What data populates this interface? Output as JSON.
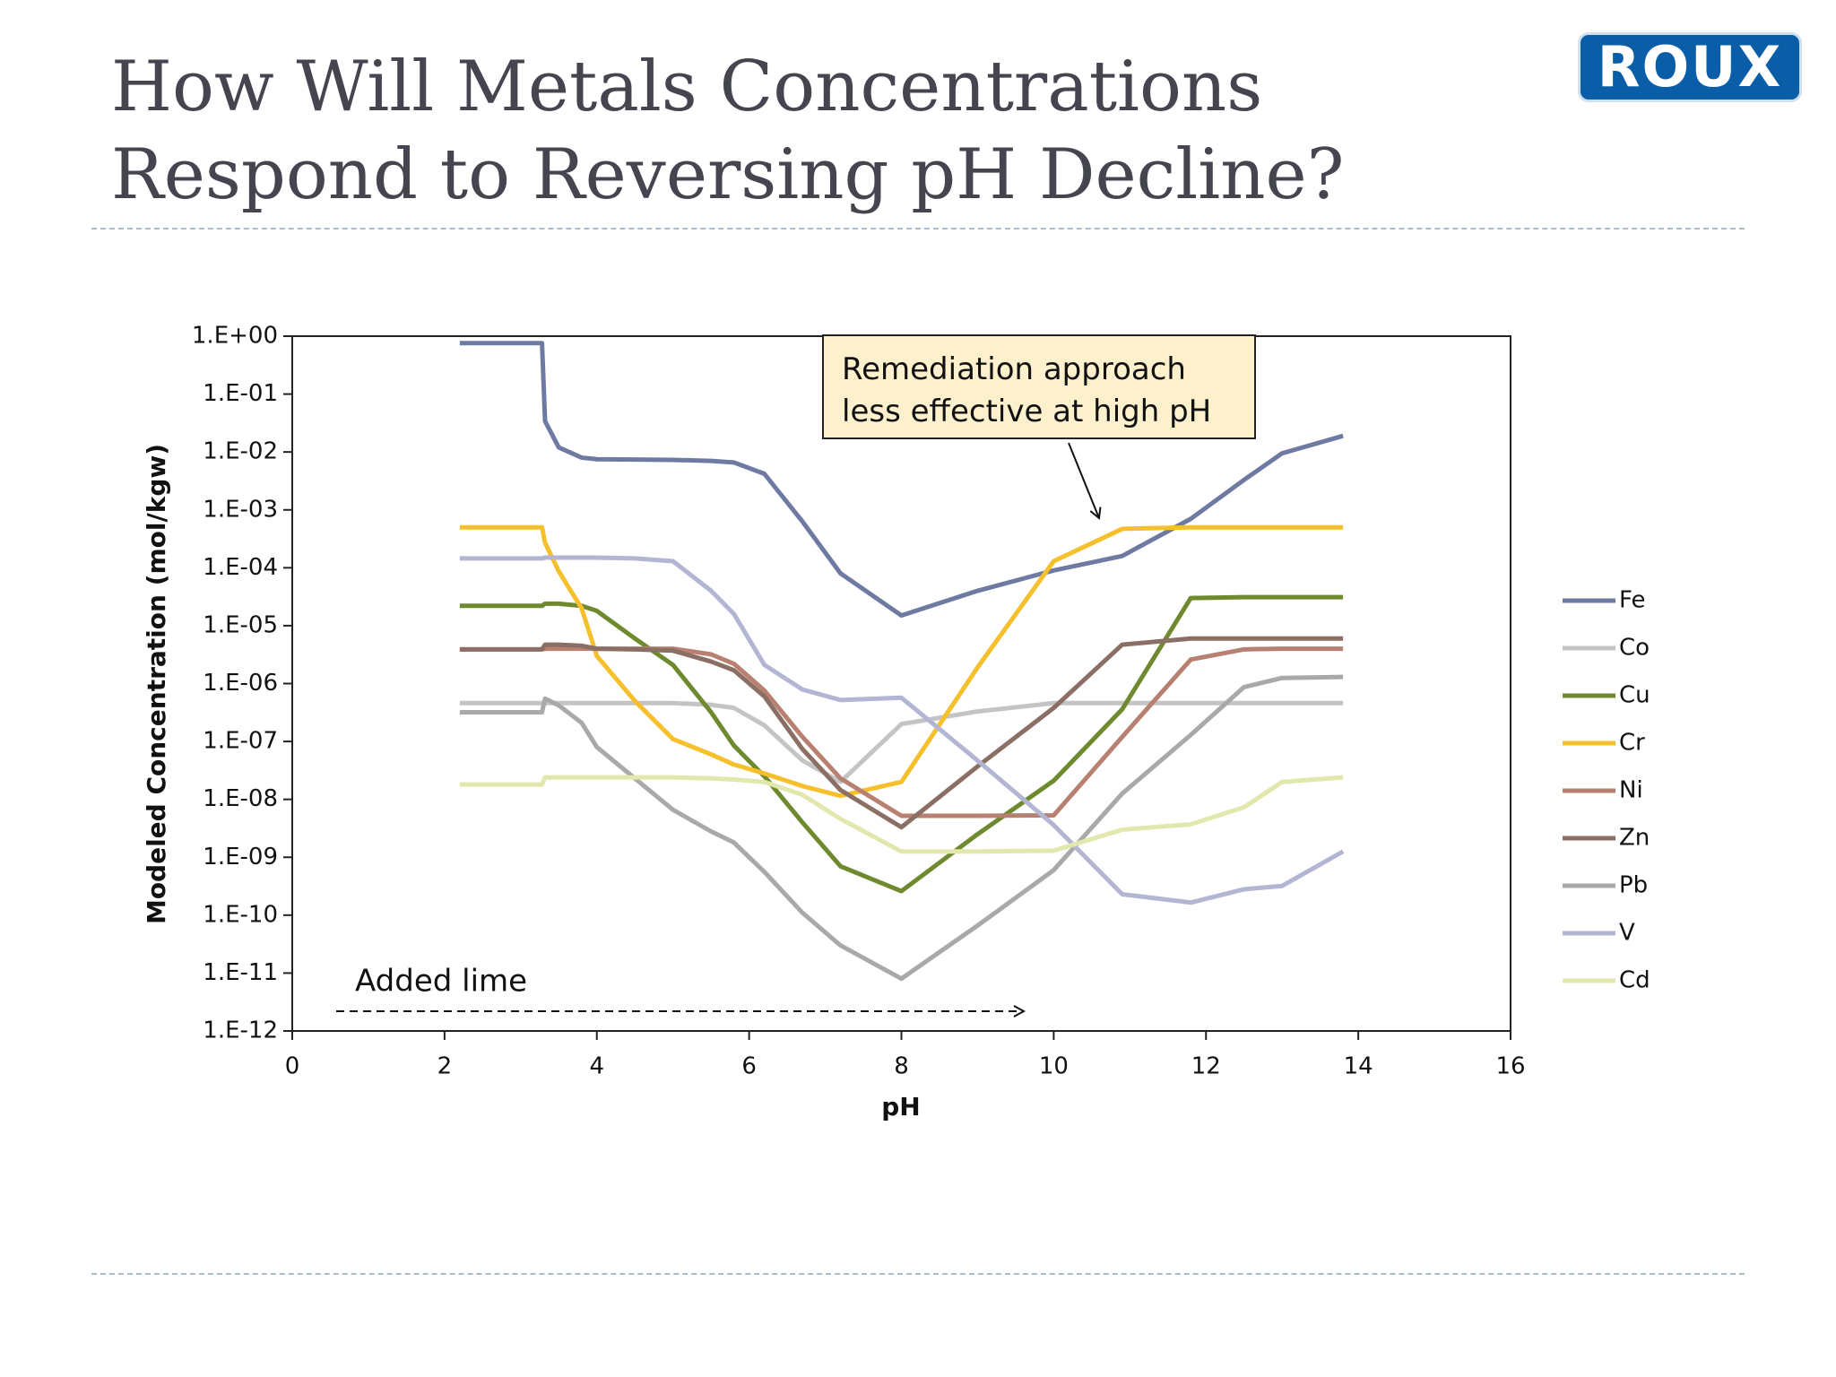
{
  "logo": "ROUX",
  "chart_data": {
    "type": "line",
    "title": "How Will Metals Concentrations Respond to Reversing pH Decline?",
    "x_label": "pH",
    "y_label": "Modeled Concentration (mol/kgw)",
    "annotations": [
      "Remediation approach less effective at high pH",
      "Added lime"
    ],
    "log_y": true,
    "grid": false,
    "legend": "right",
    "xlim": [
      0,
      16
    ],
    "xticks": [
      0,
      2,
      4,
      6,
      8,
      10,
      12,
      14,
      16
    ],
    "ylim": [
      1e-12,
      1
    ],
    "yticks": [
      {
        "value": 1e-12,
        "label": "1.E-12"
      },
      {
        "value": 1e-11,
        "label": "1.E-11"
      },
      {
        "value": 1e-10,
        "label": "1.E-10"
      },
      {
        "value": 1e-09,
        "label": "1.E-09"
      },
      {
        "value": 1e-08,
        "label": "1.E-08"
      },
      {
        "value": 1e-07,
        "label": "1.E-07"
      },
      {
        "value": 1e-06,
        "label": "1.E-06"
      },
      {
        "value": 1e-05,
        "label": "1.E-05"
      },
      {
        "value": 0.0001,
        "label": "1.E-04"
      },
      {
        "value": 0.001,
        "label": "1.E-03"
      },
      {
        "value": 0.01,
        "label": "1.E-02"
      },
      {
        "value": 0.1,
        "label": "1.E-01"
      },
      {
        "value": 1,
        "label": "1.E+00"
      }
    ],
    "x": [
      2.2,
      3.28,
      3.32,
      3.5,
      3.8,
      4,
      4.5,
      5,
      5.5,
      5.8,
      6.2,
      6.7,
      7.2,
      8,
      9,
      10,
      10.9,
      11.8,
      12.5,
      13,
      13.8
    ],
    "series": [
      {
        "name": "Fe",
        "color": "#6f7aa3",
        "values": [
          0.76,
          0.76,
          0.034,
          0.012,
          0.008,
          0.0075,
          0.0074,
          0.0073,
          0.007,
          0.0066,
          0.0042,
          0.00063,
          8e-05,
          1.5e-05,
          4e-05,
          9e-05,
          0.00016,
          0.0007,
          0.0033,
          0.0095,
          0.019
        ]
      },
      {
        "name": "Co",
        "color": "#c4c4c4",
        "values": [
          4.6e-07,
          4.6e-07,
          4.6e-07,
          4.6e-07,
          4.6e-07,
          4.6e-07,
          4.6e-07,
          4.6e-07,
          4.3e-07,
          3.8e-07,
          1.9e-07,
          4.7e-08,
          2e-08,
          2e-07,
          3.3e-07,
          4.6e-07,
          4.6e-07,
          4.6e-07,
          4.6e-07,
          4.6e-07,
          4.6e-07
        ]
      },
      {
        "name": "Cu",
        "color": "#6f8a2e",
        "values": [
          2.2e-05,
          2.2e-05,
          2.4e-05,
          2.4e-05,
          2.2e-05,
          1.8e-05,
          6e-06,
          2.1e-06,
          3.2e-07,
          8.5e-08,
          2.5e-08,
          4e-09,
          7e-10,
          2.6e-10,
          2.5e-09,
          2.1e-08,
          3.6e-07,
          3e-05,
          3.1e-05,
          3.1e-05,
          3.1e-05
        ]
      },
      {
        "name": "Cr",
        "color": "#f5c02c",
        "values": [
          0.0005,
          0.0005,
          0.00027,
          8.7e-05,
          2e-05,
          3e-06,
          5e-07,
          1.1e-07,
          6e-08,
          4e-08,
          2.8e-08,
          1.7e-08,
          1.15e-08,
          2e-08,
          1.9e-06,
          0.00013,
          0.00047,
          0.0005,
          0.0005,
          0.0005,
          0.0005
        ]
      },
      {
        "name": "Ni",
        "color": "#b88070",
        "values": [
          3.9e-06,
          3.9e-06,
          4e-06,
          4e-06,
          4e-06,
          4e-06,
          4e-06,
          4e-06,
          3.2e-06,
          2.2e-06,
          7.6e-07,
          1.2e-07,
          2.3e-08,
          5.2e-09,
          5.2e-09,
          5.3e-09,
          1.2e-07,
          2.6e-06,
          3.9e-06,
          4e-06,
          4e-06
        ]
      },
      {
        "name": "Zn",
        "color": "#8b6e64",
        "values": [
          3.9e-06,
          3.9e-06,
          4.7e-06,
          4.7e-06,
          4.5e-06,
          4e-06,
          3.9e-06,
          3.7e-06,
          2.4e-06,
          1.7e-06,
          6e-07,
          7.4e-08,
          1.45e-08,
          3.3e-09,
          3.7e-08,
          3.8e-07,
          4.7e-06,
          6e-06,
          6e-06,
          6e-06,
          6e-06
        ]
      },
      {
        "name": "Pb",
        "color": "#a9a9a9",
        "values": [
          3.2e-07,
          3.2e-07,
          5.5e-07,
          4.2e-07,
          2.1e-07,
          8e-08,
          2.3e-08,
          6.6e-09,
          2.8e-09,
          1.8e-09,
          5.6e-10,
          1.1e-10,
          3e-11,
          8e-12,
          6.6e-11,
          6e-10,
          1.26e-08,
          1.3e-07,
          8.7e-07,
          1.25e-06,
          1.3e-06
        ]
      },
      {
        "name": "V",
        "color": "#b3b6d3",
        "values": [
          0.000145,
          0.000145,
          0.00015,
          0.00015,
          0.00015,
          0.00015,
          0.000145,
          0.00013,
          4e-05,
          1.6e-05,
          2.1e-06,
          7.9e-07,
          5.2e-07,
          5.7e-07,
          4.7e-08,
          3.6e-09,
          2.3e-10,
          1.65e-10,
          2.8e-10,
          3.2e-10,
          1.26e-09
        ]
      },
      {
        "name": "Cd",
        "color": "#e2e8ad",
        "values": [
          1.8e-08,
          1.8e-08,
          2.4e-08,
          2.4e-08,
          2.4e-08,
          2.4e-08,
          2.4e-08,
          2.4e-08,
          2.3e-08,
          2.2e-08,
          2e-08,
          1.2e-08,
          4.6e-09,
          1.26e-09,
          1.26e-09,
          1.3e-09,
          3e-09,
          3.7e-09,
          7.3e-09,
          2e-08,
          2.4e-08
        ]
      }
    ]
  }
}
